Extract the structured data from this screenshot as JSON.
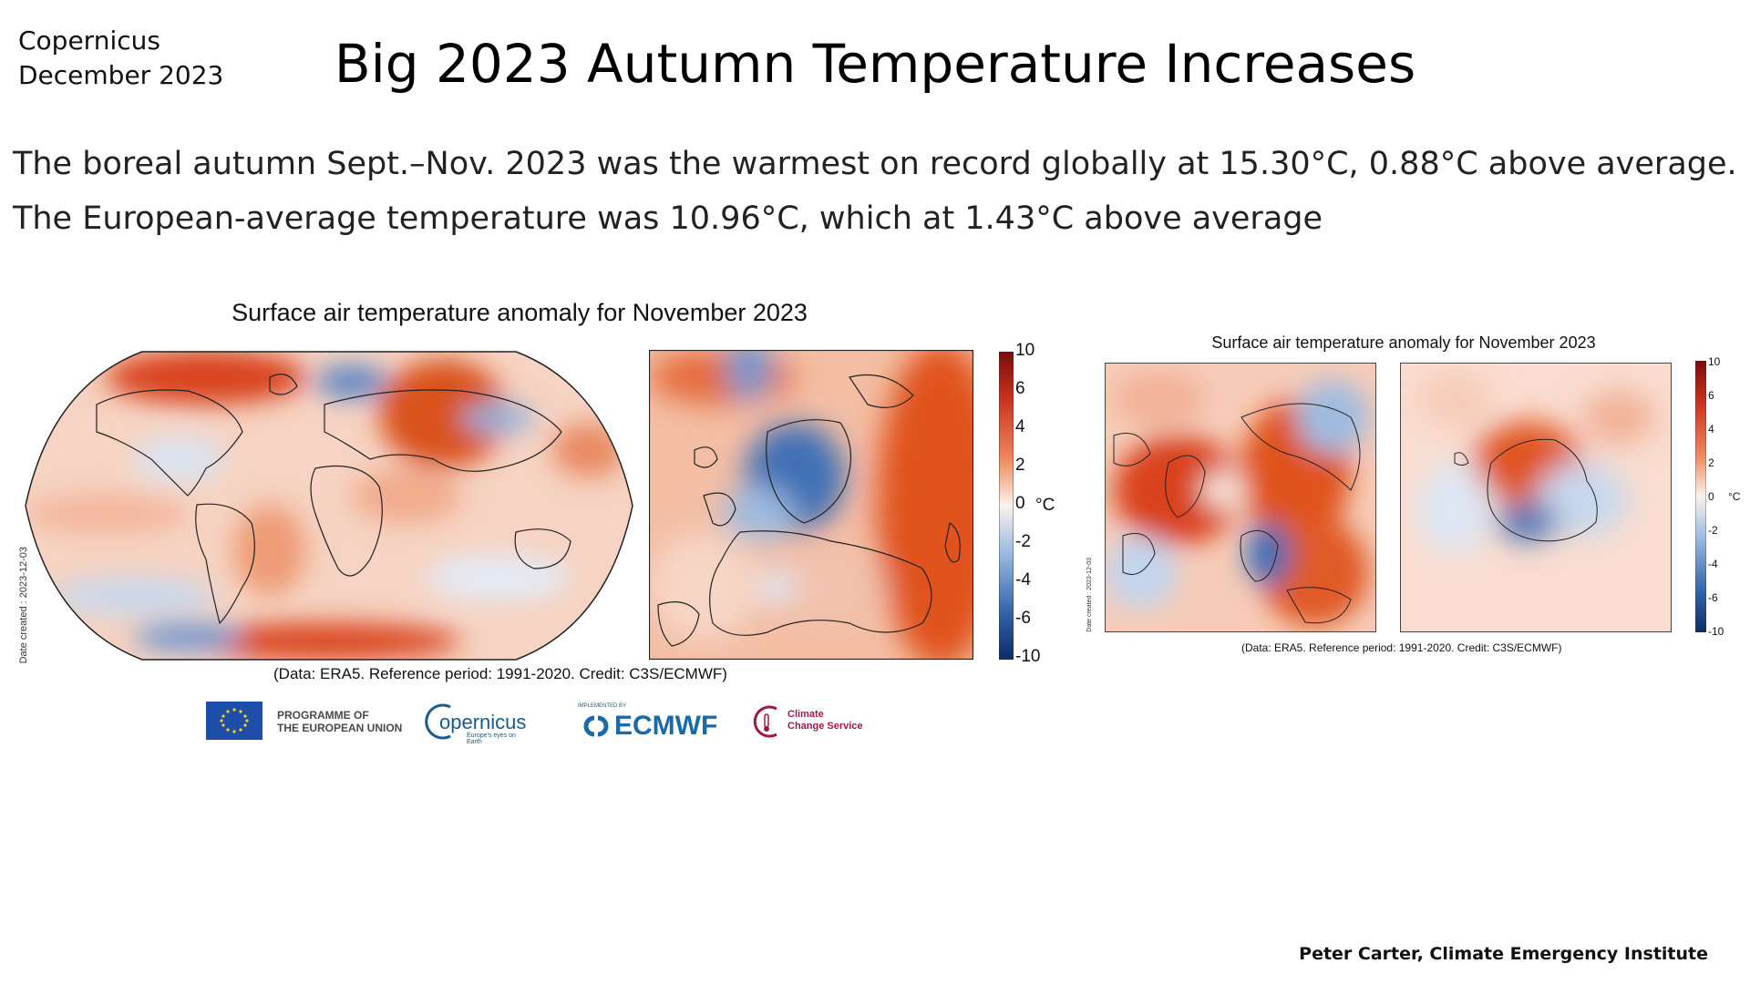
{
  "header": {
    "source_line1": "Copernicus",
    "source_line2": "December 2023",
    "title": "Big 2023 Autumn Temperature Increases"
  },
  "text": {
    "line1": "The boreal autumn Sept.–Nov. 2023 was the warmest on record globally at 15.30°C, 0.88°C above average.",
    "line2": "The European-average temperature was 10.96°C, which at 1.43°C above average"
  },
  "left_figure": {
    "title": "Surface air temperature anomaly for November 2023",
    "date_created": "Date created : 2023-12-03",
    "credit": "(Data: ERA5.  Reference period: 1991-2020.  Credit: C3S/ECMWF)",
    "colorbar_ticks": [
      "10",
      "6",
      "4",
      "2",
      "0",
      "-2",
      "-4",
      "-6",
      "-10"
    ],
    "unit": "°C"
  },
  "right_figure": {
    "title": "Surface air temperature anomaly for November 2023",
    "date_created": "Date created : 2023-12-03",
    "credit": "(Data: ERA5.  Reference period: 1991-2020.  Credit: C3S/ECMWF)",
    "colorbar_ticks": [
      "10",
      "6",
      "4",
      "2",
      "0",
      "-2",
      "-4",
      "-6",
      "-10"
    ],
    "unit": "°C"
  },
  "logos": {
    "eu_line1": "PROGRAMME OF",
    "eu_line2": "THE EUROPEAN UNION",
    "copernicus": "opernicus",
    "copernicus_tag": "Europe's eyes on Earth",
    "implemented": "IMPLEMENTED BY",
    "ecmwf": "ECMWF",
    "c3s_line1": "Climate",
    "c3s_line2": "Change Service"
  },
  "footer": {
    "author": "Peter Carter, Climate Emergency Institute"
  },
  "colors": {
    "warm": "#d9421a",
    "cool": "#2e62a8",
    "neutral": "#f7f2ee"
  }
}
